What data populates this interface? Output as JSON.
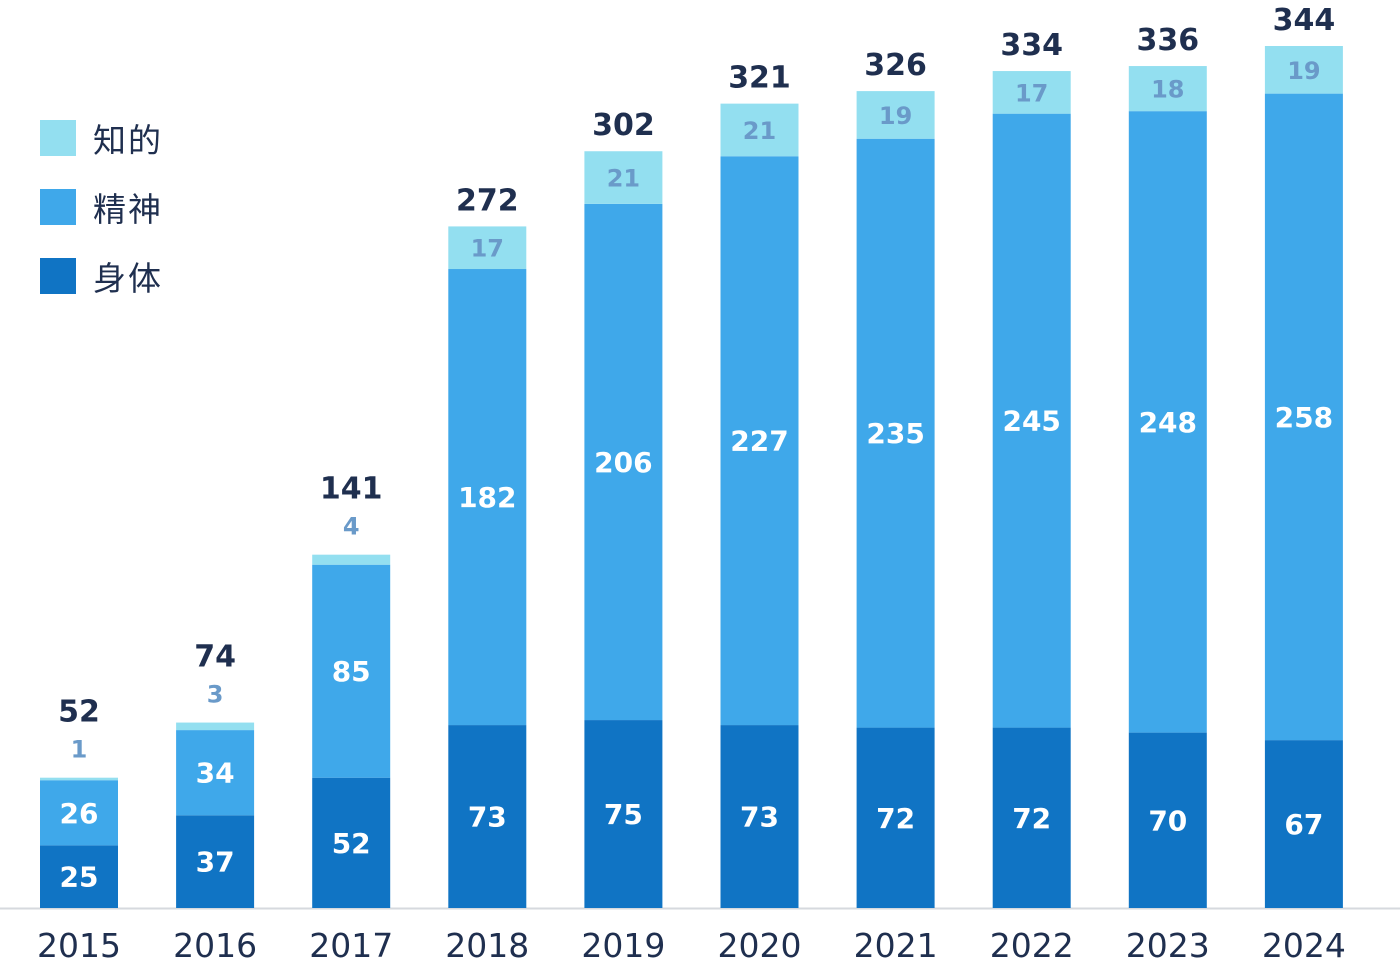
{
  "chart_data": {
    "type": "bar",
    "stacked": true,
    "categories": [
      "2015",
      "2016",
      "2017",
      "2018",
      "2019",
      "2020",
      "2021",
      "2022",
      "2023",
      "2024"
    ],
    "series": [
      {
        "name": "身体",
        "color": "#1074c4",
        "values": [
          25,
          37,
          52,
          73,
          75,
          73,
          72,
          72,
          70,
          67
        ]
      },
      {
        "name": "精神",
        "color": "#3fa8ea",
        "values": [
          26,
          34,
          85,
          182,
          206,
          227,
          235,
          245,
          248,
          258
        ]
      },
      {
        "name": "知的",
        "color": "#93dff0",
        "values": [
          1,
          3,
          4,
          17,
          21,
          21,
          19,
          17,
          18,
          19
        ]
      }
    ],
    "totals": [
      52,
      74,
      141,
      272,
      302,
      321,
      326,
      334,
      336,
      344
    ],
    "legend_position": "top-left",
    "grid": false,
    "ylim": [
      0,
      344
    ],
    "title": "",
    "xlabel": "",
    "ylabel": ""
  },
  "legend": [
    {
      "label": "知的",
      "color": "#93dff0"
    },
    {
      "label": "精神",
      "color": "#3fa8ea"
    },
    {
      "label": "身体",
      "color": "#1074c4"
    }
  ]
}
